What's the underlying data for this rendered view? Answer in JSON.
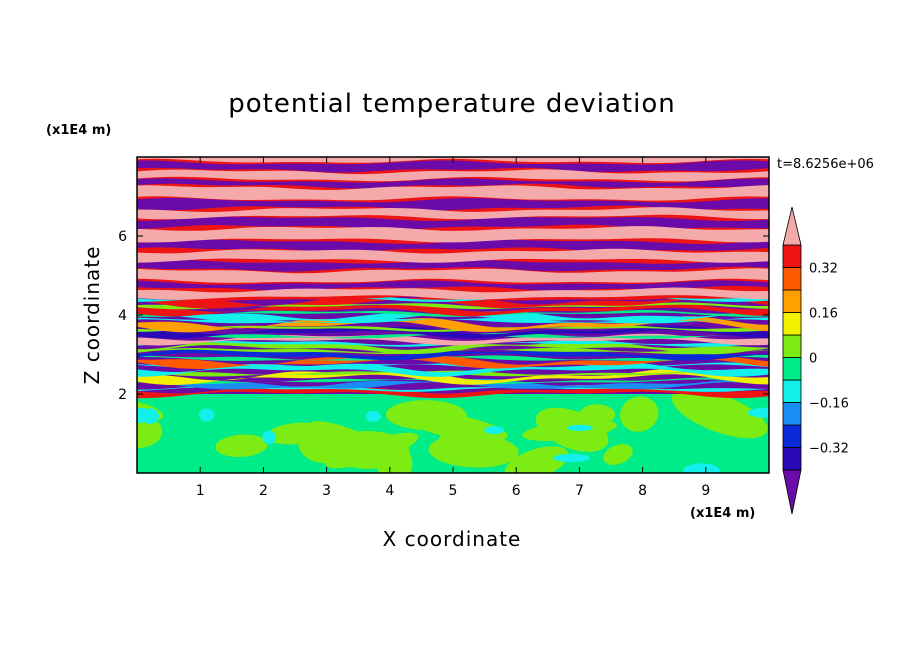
{
  "chart_data": {
    "type": "heatmap",
    "title": "potential temperature deviation",
    "xlabel": "X coordinate",
    "ylabel": "Z coordinate",
    "x_unit": "(x1E4 m)",
    "y_unit": "(x1E4 m)",
    "time_label": "t=8.6256e+06",
    "xlim": [
      0,
      10
    ],
    "ylim": [
      0,
      8
    ],
    "x_ticks": [
      1,
      2,
      3,
      4,
      5,
      6,
      7,
      8,
      9
    ],
    "x_tick_labels": [
      "1",
      "2",
      "3",
      "4",
      "5",
      "6",
      "7",
      "8",
      "9"
    ],
    "y_ticks": [
      2,
      4,
      6
    ],
    "y_tick_labels": [
      "2",
      "4",
      "6"
    ],
    "colorbar": {
      "levels": [
        -0.4,
        -0.32,
        -0.24,
        -0.16,
        -0.08,
        0,
        0.08,
        0.16,
        0.24,
        0.32,
        0.4
      ],
      "tick_values": [
        0.32,
        0.16,
        0,
        -0.16,
        -0.32
      ],
      "tick_labels": [
        "0.32",
        "0.16",
        "0",
        "−0.16",
        "−0.32"
      ],
      "colors": [
        "#6a0aa8",
        "#2a0ab8",
        "#0a2ad8",
        "#1a8cf4",
        "#12f0ec",
        "#00ec88",
        "#7cec12",
        "#f0f000",
        "#ffa000",
        "#ff5a00",
        "#ee1414",
        "#f4aaaa"
      ],
      "extend": "both"
    },
    "field": {
      "stable_layer_top": 2.0,
      "upper_layer_pattern": "alternating horizontal bands of positive (pink) and negative (purple) deviation",
      "lower_layer_pattern": "near-zero turbulent region (green)"
    }
  }
}
